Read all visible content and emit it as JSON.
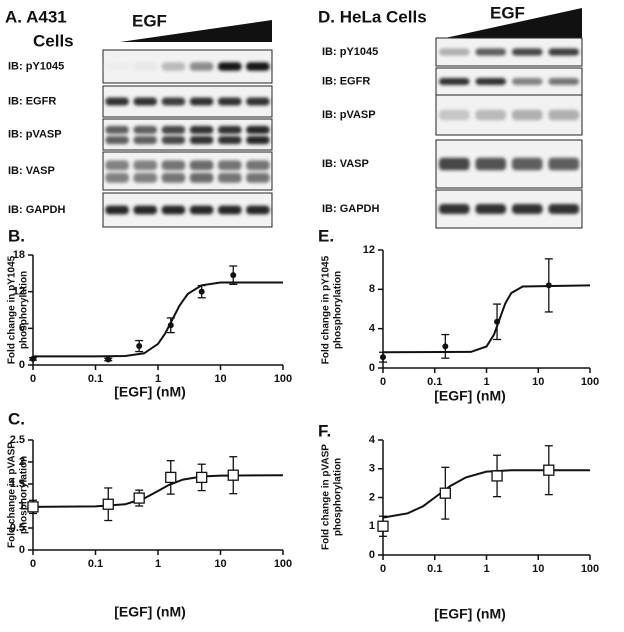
{
  "blots": [
    {
      "title": [
        "A. A431",
        "Cells"
      ],
      "treatment": "EGF",
      "rows": [
        "IB: pY1045",
        "IB: EGFR",
        "IB: pVASP",
        "IB: VASP",
        "IB: GAPDH"
      ]
    },
    {
      "title": [
        "D. HeLa Cells"
      ],
      "treatment": "EGF",
      "rows": [
        "IB: pY1045",
        "IB: EGFR",
        "IB: pVASP",
        "IB: VASP",
        "IB: GAPDH"
      ]
    }
  ],
  "chart_data": [
    {
      "type": "scatter",
      "label": "B.",
      "ylabel": [
        "Fold change in pY1045",
        "phosphorylation"
      ],
      "xlabel": "[EGF] (nM)",
      "log_x": true,
      "xlim": [
        0.01,
        100
      ],
      "xticks": [
        {
          "value": 0.01,
          "label": "0"
        },
        0.1,
        1,
        10,
        100
      ],
      "ylim": [
        0,
        18
      ],
      "yticks": [
        0,
        6,
        12,
        18
      ],
      "marker": "circle",
      "x": [
        0.01,
        0.16,
        0.5,
        1.6,
        5,
        16
      ],
      "values": [
        1.0,
        0.9,
        3.1,
        6.5,
        12,
        14.7
      ],
      "errors": [
        0.2,
        0.2,
        0.9,
        1.2,
        1.0,
        1.5
      ],
      "fit_x": [
        0.01,
        0.1,
        0.3,
        0.6,
        1,
        1.3,
        1.7,
        2.2,
        3,
        5,
        10,
        100
      ],
      "fit_values": [
        1.4,
        1.4,
        1.47,
        1.91,
        3.45,
        5.13,
        7.45,
        9.68,
        11.64,
        13.04,
        13.5,
        13.5
      ]
    },
    {
      "type": "scatter",
      "label": "C.",
      "ylabel": [
        "Fold change in pVASP",
        "phosphorylation"
      ],
      "xlabel": "[EGF] (nM)",
      "log_x": true,
      "xlim": [
        0.01,
        100
      ],
      "xticks": [
        {
          "value": 0.01,
          "label": "0"
        },
        0.1,
        1,
        10,
        100
      ],
      "ylim": [
        0,
        2.5
      ],
      "yticks": [
        0,
        0.5,
        1,
        1.5,
        2,
        2.5
      ],
      "marker": "square",
      "x": [
        0.01,
        0.16,
        0.5,
        1.6,
        5,
        16
      ],
      "values": [
        0.98,
        1.04,
        1.18,
        1.65,
        1.65,
        1.7
      ],
      "errors": [
        0.15,
        0.37,
        0.18,
        0.38,
        0.3,
        0.42
      ],
      "fit_x": [
        0.01,
        0.1,
        0.3,
        0.6,
        1,
        1.5,
        2.5,
        5,
        10,
        100
      ],
      "fit_values": [
        0.98,
        0.99,
        1.04,
        1.17,
        1.34,
        1.48,
        1.6,
        1.67,
        1.69,
        1.7
      ]
    },
    {
      "type": "scatter",
      "label": "E.",
      "ylabel": [
        "Fold change in pY1045",
        "phosphorylation"
      ],
      "xlabel": "[EGF] (nM)",
      "log_x": true,
      "xlim": [
        0.01,
        100
      ],
      "xticks": [
        {
          "value": 0.01,
          "label": "0"
        },
        0.1,
        1,
        10,
        100
      ],
      "ylim": [
        0,
        12
      ],
      "yticks": [
        0,
        4,
        8,
        12
      ],
      "marker": "circle",
      "x": [
        0.01,
        0.16,
        1.6,
        16
      ],
      "values": [
        1.1,
        2.2,
        4.7,
        8.4
      ],
      "errors": [
        0.5,
        1.2,
        1.8,
        2.7
      ],
      "fit_x": [
        0.01,
        0.5,
        1,
        1.4,
        1.8,
        2.3,
        3,
        5,
        100
      ],
      "fit_values": [
        1.6,
        1.64,
        2.19,
        3.42,
        5.0,
        6.54,
        7.62,
        8.29,
        8.4
      ]
    },
    {
      "type": "scatter",
      "label": "F.",
      "ylabel": [
        "Fold change in pVASP",
        "phosphorylation"
      ],
      "xlabel": "[EGF] (nM)",
      "log_x": true,
      "xlim": [
        0.01,
        100
      ],
      "xticks": [
        {
          "value": 0.01,
          "label": "0"
        },
        0.1,
        1,
        10,
        100
      ],
      "ylim": [
        0,
        4
      ],
      "yticks": [
        0,
        1,
        2,
        3,
        4
      ],
      "marker": "square",
      "x": [
        0.01,
        0.16,
        1.6,
        16
      ],
      "values": [
        1.0,
        2.15,
        2.75,
        2.95
      ],
      "errors": [
        0.35,
        0.9,
        0.72,
        0.85
      ],
      "fit_x": [
        0.01,
        0.03,
        0.06,
        0.1,
        0.2,
        0.4,
        1,
        3,
        100
      ],
      "fit_values": [
        1.3,
        1.45,
        1.7,
        2.0,
        2.4,
        2.7,
        2.9,
        2.95,
        2.95
      ]
    }
  ]
}
